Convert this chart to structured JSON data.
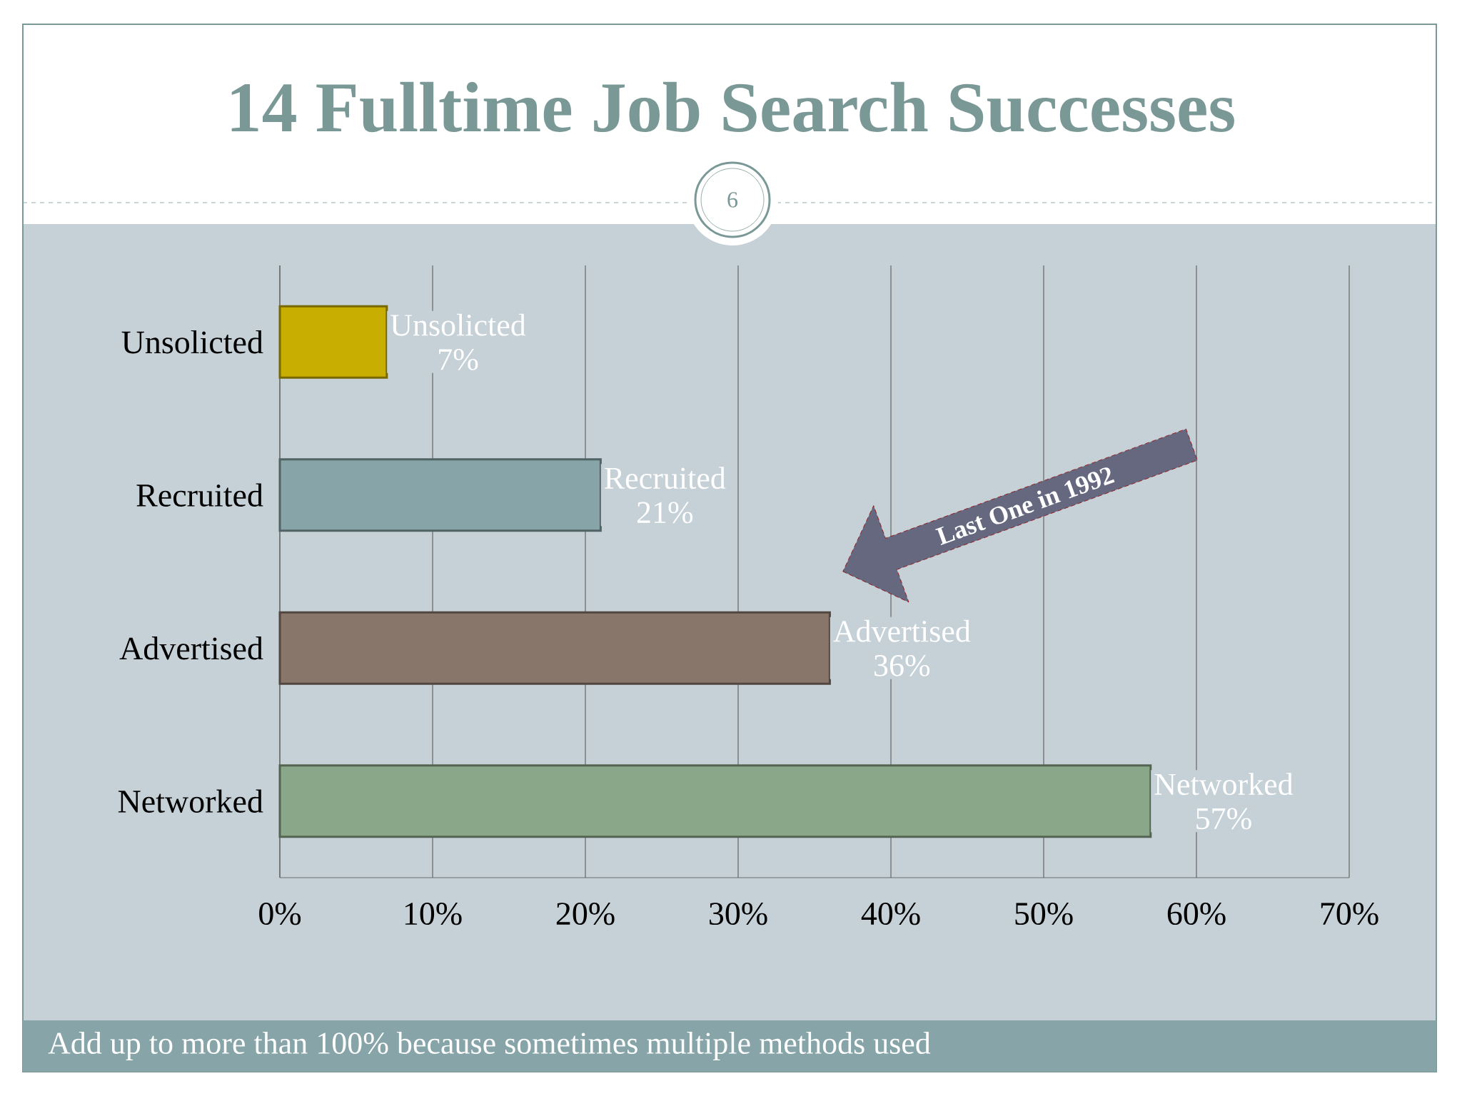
{
  "chart_data": {
    "type": "bar",
    "orientation": "horizontal",
    "title": "14 Fulltime Job Search Successes",
    "categories": [
      "Unsolicted",
      "Recruited",
      "Advertised",
      "Networked"
    ],
    "values": [
      7,
      21,
      36,
      57
    ],
    "colors": [
      "#c8ae00",
      "#87a5a8",
      "#88766b",
      "#8aa889"
    ],
    "value_labels": [
      "7%",
      "21%",
      "36%",
      "57%"
    ],
    "xlim": [
      0,
      70
    ],
    "xticks": [
      {
        "value": 0,
        "label": "0%"
      },
      {
        "value": 10,
        "label": "10%"
      },
      {
        "value": 20,
        "label": "20%"
      },
      {
        "value": 30,
        "label": "30%"
      },
      {
        "value": 40,
        "label": "40%"
      },
      {
        "value": 50,
        "label": "50%"
      },
      {
        "value": 60,
        "label": "60%"
      },
      {
        "value": 70,
        "label": "70%"
      }
    ],
    "grid": "x",
    "annotations": [
      "6",
      "Last One in 1992",
      "Add up to more than 100% because sometimes multiple methods used"
    ]
  }
}
